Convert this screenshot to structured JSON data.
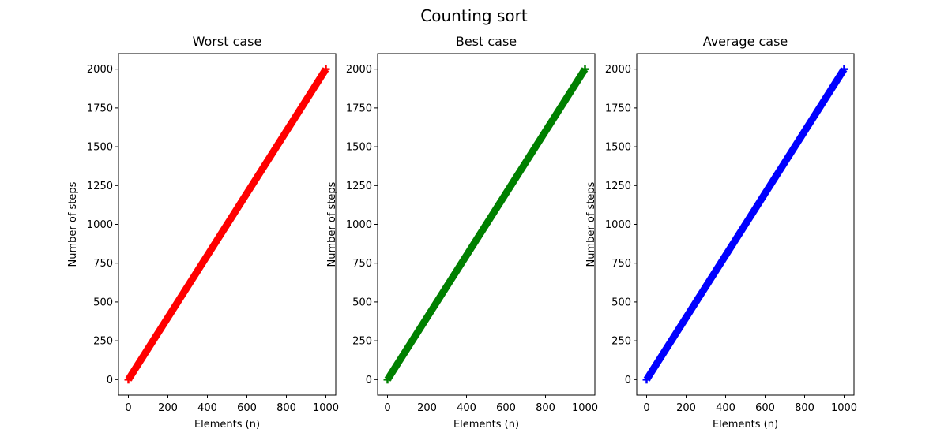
{
  "chart_data": {
    "suptitle": "Counting sort",
    "panels": [
      {
        "type": "line",
        "title": "Worst case",
        "xlabel": "Elements (n)",
        "ylabel": "Number of steps",
        "color": "#ff0000",
        "marker": "plus",
        "x_start": 0,
        "x_end": 1000,
        "y_start": 0,
        "y_end": 2000,
        "slope": 2,
        "xlim": [
          -50,
          1050
        ],
        "ylim": [
          -100,
          2100
        ],
        "xticks": [
          0,
          200,
          400,
          600,
          800,
          1000
        ],
        "yticks": [
          0,
          250,
          500,
          750,
          1000,
          1250,
          1500,
          1750,
          2000
        ],
        "grid": false
      },
      {
        "type": "line",
        "title": "Best case",
        "xlabel": "Elements (n)",
        "ylabel": "Number of steps",
        "color": "#008000",
        "marker": "plus",
        "x_start": 0,
        "x_end": 1000,
        "y_start": 0,
        "y_end": 2000,
        "slope": 2,
        "xlim": [
          -50,
          1050
        ],
        "ylim": [
          -100,
          2100
        ],
        "xticks": [
          0,
          200,
          400,
          600,
          800,
          1000
        ],
        "yticks": [
          0,
          250,
          500,
          750,
          1000,
          1250,
          1500,
          1750,
          2000
        ],
        "grid": false
      },
      {
        "type": "line",
        "title": "Average case",
        "xlabel": "Elements (n)",
        "ylabel": "Number of steps",
        "color": "#0000ff",
        "marker": "plus",
        "x_start": 0,
        "x_end": 1000,
        "y_start": 0,
        "y_end": 2000,
        "slope": 2,
        "xlim": [
          -50,
          1050
        ],
        "ylim": [
          -100,
          2100
        ],
        "xticks": [
          0,
          200,
          400,
          600,
          800,
          1000
        ],
        "yticks": [
          0,
          250,
          500,
          750,
          1000,
          1250,
          1500,
          1750,
          2000
        ],
        "grid": false
      }
    ]
  }
}
